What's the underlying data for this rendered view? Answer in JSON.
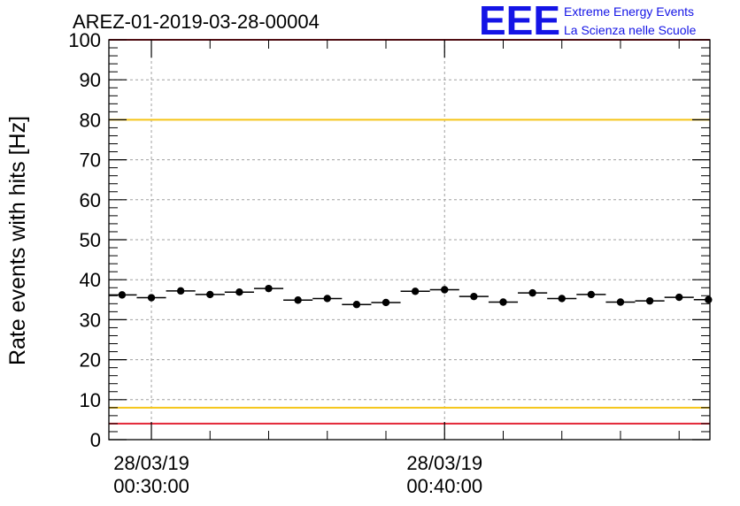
{
  "chart_data": {
    "type": "scatter",
    "title": "AREZ-01-2019-03-28-00004",
    "ylabel": "Rate events with hits [Hz]",
    "xlabel": "",
    "ylim": [
      0,
      100
    ],
    "xlim_minutes": [
      28.55,
      49.05
    ],
    "yticks": [
      "0",
      "10",
      "20",
      "30",
      "40",
      "50",
      "60",
      "70",
      "80",
      "90",
      "100"
    ],
    "xticks": [
      {
        "minute": 30,
        "date": "28/03/19",
        "time": "00:30:00"
      },
      {
        "minute": 40,
        "date": "28/03/19",
        "time": "00:40:00"
      }
    ],
    "grid": true,
    "bin_width_minutes": 1,
    "x_minutes": [
      29,
      30,
      31,
      32,
      33,
      34,
      35,
      36,
      37,
      38,
      39,
      40,
      41,
      42,
      43,
      44,
      45,
      46,
      47,
      48,
      49
    ],
    "values": [
      36.2,
      35.5,
      37.2,
      36.3,
      36.9,
      37.8,
      34.9,
      35.3,
      33.8,
      34.3,
      37.1,
      37.5,
      35.8,
      34.4,
      36.7,
      35.3,
      36.3,
      34.4,
      34.7,
      35.6,
      35.0
    ],
    "reference_lines": [
      {
        "value": 100,
        "color": "#e32636"
      },
      {
        "value": 80,
        "color": "#f5c518"
      },
      {
        "value": 8,
        "color": "#f5c518"
      },
      {
        "value": 4,
        "color": "#e32636"
      }
    ],
    "marker_color": "#000000"
  },
  "logo": {
    "mark": "EEE",
    "line1": "Extreme Energy Events",
    "line2": "La Scienza nelle Scuole",
    "color": "#1414e6"
  }
}
